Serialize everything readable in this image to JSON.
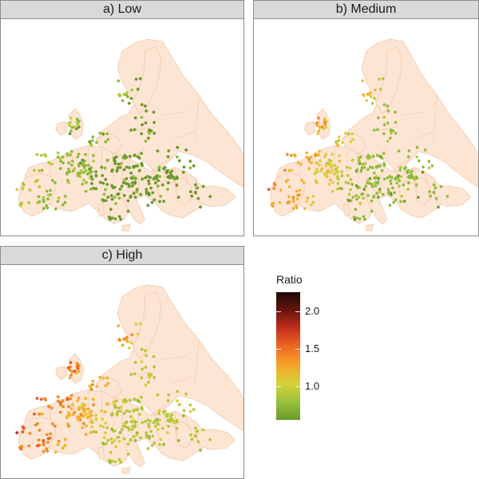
{
  "panels": [
    {
      "id": "low",
      "title": "a) Low"
    },
    {
      "id": "medium",
      "title": "b) Medium"
    },
    {
      "id": "high",
      "title": "c) High"
    }
  ],
  "legend": {
    "title": "Ratio",
    "ticks": [
      {
        "label": "2.0",
        "value": 2.0
      },
      {
        "label": "1.5",
        "value": 1.5
      },
      {
        "label": "1.0",
        "value": 1.0
      }
    ],
    "range": [
      0.55,
      2.25
    ],
    "colors": [
      "#6a9a2a",
      "#9ac03c",
      "#d6d23a",
      "#f5a52a",
      "#ef6a22",
      "#c4301c",
      "#6a140e",
      "#1a0a0a"
    ]
  },
  "map_style": {
    "land_color": "#fde5d4",
    "border_color": "#f3c8a8"
  }
}
